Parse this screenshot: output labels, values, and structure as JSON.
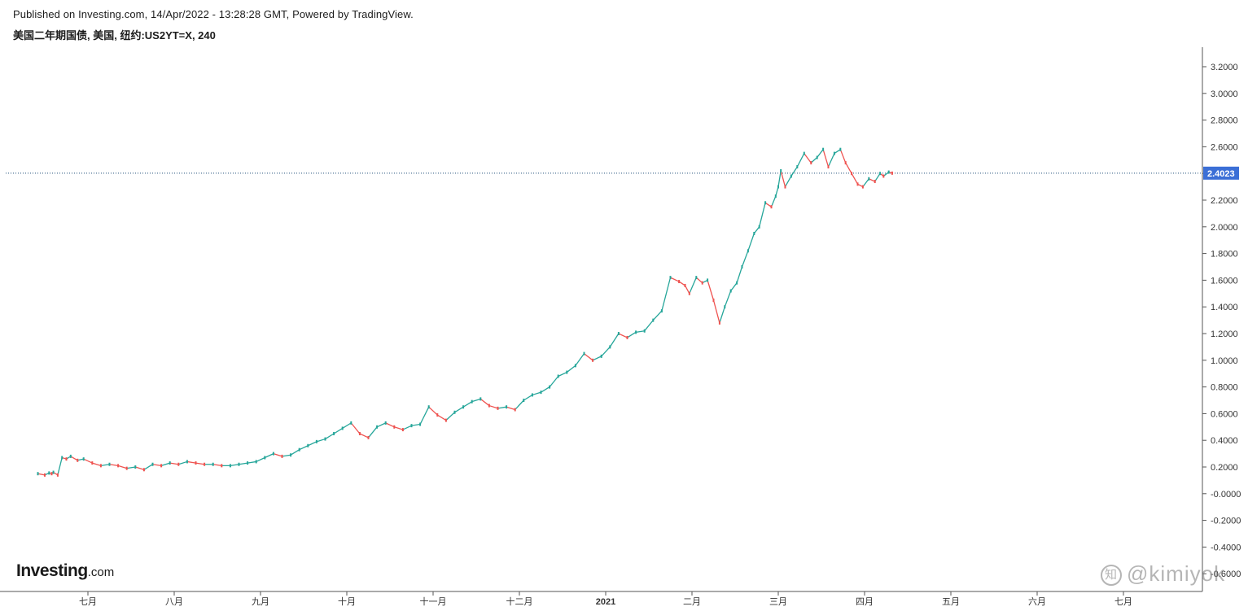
{
  "header": {
    "published": "Published on Investing.com, 14/Apr/2022 - 13:28:28 GMT, Powered by TradingView.",
    "symbol_line": "美国二年期国债, 美国, 纽约:US2YT=X, 240"
  },
  "branding": {
    "logo_text": "Investing",
    "logo_suffix": ".com",
    "watermark_text": "@kimiyok",
    "watermark_icon": "zhihu-icon"
  },
  "colors": {
    "up_candle": "#26a69a",
    "down_candle": "#ef5350",
    "price_line": "#1f4e79",
    "price_badge": "#3b6fd6"
  },
  "chart_data": {
    "type": "line",
    "title": "美国二年期国债, 美国, 纽约:US2YT=X, 240",
    "xlabel": "",
    "ylabel": "",
    "ylim": [
      -0.7,
      3.35
    ],
    "grid": false,
    "y_ticks": [
      "3.2000",
      "3.0000",
      "2.8000",
      "2.6000",
      "2.4000",
      "2.2000",
      "2.0000",
      "1.8000",
      "1.6000",
      "1.4000",
      "1.2000",
      "1.0000",
      "0.8000",
      "0.6000",
      "0.4000",
      "0.2000",
      "-0.0000",
      "-0.2000",
      "-0.4000",
      "-0.6000"
    ],
    "x_ticks": [
      {
        "label": "七月",
        "month": 7.0
      },
      {
        "label": "八月",
        "month": 8.0
      },
      {
        "label": "九月",
        "month": 9.0
      },
      {
        "label": "十月",
        "month": 10.0
      },
      {
        "label": "十一月",
        "month": 11.0
      },
      {
        "label": "十二月",
        "month": 12.0
      },
      {
        "label": "2021",
        "month": 13.0,
        "bold": true
      },
      {
        "label": "二月",
        "month": 14.0
      },
      {
        "label": "三月",
        "month": 15.0
      },
      {
        "label": "四月",
        "month": 16.0
      },
      {
        "label": "五月",
        "month": 17.0
      },
      {
        "label": "六月",
        "month": 18.0
      },
      {
        "label": "七月",
        "month": 19.0
      }
    ],
    "last_price": 2.4023,
    "last_price_label": "2.4023",
    "series": [
      {
        "x": [
          6.42,
          6.5,
          6.55,
          6.58,
          6.6,
          6.65,
          6.7,
          6.75,
          6.8,
          6.88,
          6.95,
          7.05,
          7.15,
          7.25,
          7.35,
          7.45,
          7.55,
          7.65,
          7.75,
          7.85,
          7.95,
          8.05,
          8.15,
          8.25,
          8.35,
          8.45,
          8.55,
          8.65,
          8.75,
          8.85,
          8.95,
          9.05,
          9.15,
          9.25,
          9.35,
          9.45,
          9.55,
          9.65,
          9.75,
          9.85,
          9.95,
          10.05,
          10.15,
          10.25,
          10.35,
          10.45,
          10.55,
          10.65,
          10.75,
          10.85,
          10.95,
          11.05,
          11.15,
          11.25,
          11.35,
          11.45,
          11.55,
          11.65,
          11.75,
          11.85,
          11.95,
          12.05,
          12.15,
          12.25,
          12.35,
          12.45,
          12.55,
          12.65,
          12.75,
          12.85,
          12.95,
          13.05,
          13.15,
          13.25,
          13.35,
          13.45,
          13.55,
          13.65,
          13.75,
          13.85,
          13.92,
          13.97,
          14.05,
          14.12,
          14.18,
          14.25,
          14.32,
          14.38,
          14.45,
          14.52,
          14.58,
          14.65,
          14.72,
          14.78,
          14.85,
          14.92,
          14.97,
          15.0,
          15.03,
          15.08,
          15.15,
          15.22,
          15.3,
          15.38,
          15.45,
          15.52,
          15.58,
          15.65,
          15.72,
          15.78,
          15.85,
          15.92,
          15.98,
          16.05,
          16.12,
          16.18,
          16.22,
          16.28,
          16.32
        ],
        "y": [
          0.15,
          0.14,
          0.155,
          0.15,
          0.16,
          0.14,
          0.27,
          0.26,
          0.28,
          0.25,
          0.26,
          0.23,
          0.21,
          0.22,
          0.21,
          0.19,
          0.2,
          0.18,
          0.22,
          0.21,
          0.23,
          0.22,
          0.24,
          0.23,
          0.22,
          0.22,
          0.21,
          0.21,
          0.22,
          0.23,
          0.24,
          0.27,
          0.3,
          0.28,
          0.29,
          0.33,
          0.36,
          0.39,
          0.41,
          0.45,
          0.49,
          0.53,
          0.45,
          0.42,
          0.5,
          0.53,
          0.5,
          0.48,
          0.51,
          0.52,
          0.65,
          0.59,
          0.55,
          0.61,
          0.65,
          0.69,
          0.71,
          0.66,
          0.64,
          0.65,
          0.63,
          0.7,
          0.74,
          0.76,
          0.8,
          0.88,
          0.91,
          0.96,
          1.05,
          1.0,
          1.03,
          1.1,
          1.2,
          1.17,
          1.21,
          1.22,
          1.3,
          1.37,
          1.62,
          1.59,
          1.56,
          1.5,
          1.62,
          1.58,
          1.6,
          1.45,
          1.28,
          1.4,
          1.52,
          1.58,
          1.7,
          1.82,
          1.95,
          2.0,
          2.18,
          2.15,
          2.23,
          2.3,
          2.42,
          2.3,
          2.38,
          2.45,
          2.55,
          2.48,
          2.52,
          2.58,
          2.45,
          2.55,
          2.58,
          2.48,
          2.4,
          2.32,
          2.3,
          2.36,
          2.34,
          2.4,
          2.38,
          2.41,
          2.4023
        ]
      }
    ]
  }
}
